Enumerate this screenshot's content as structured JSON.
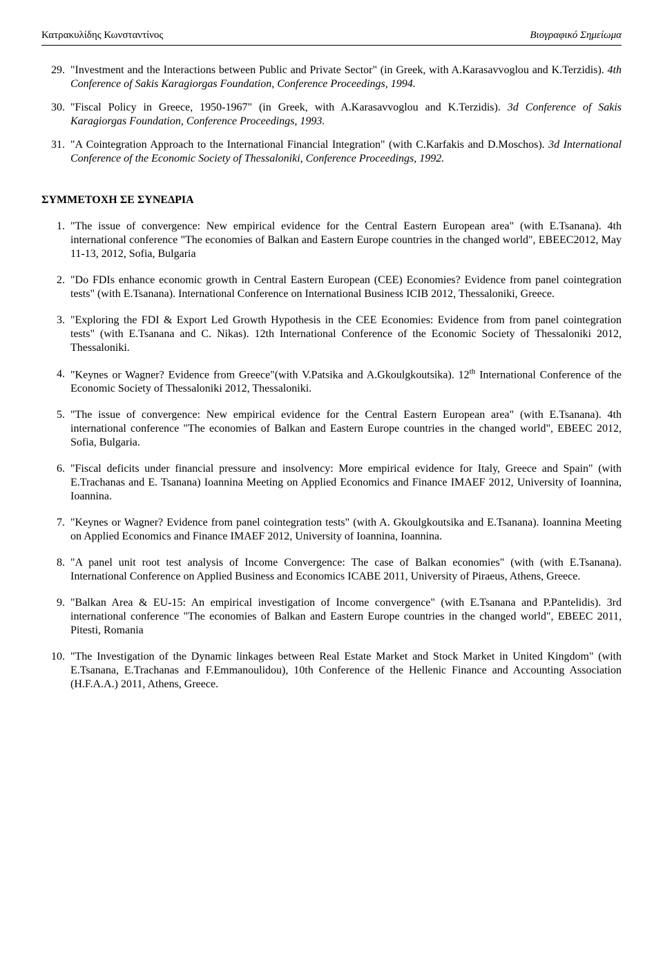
{
  "header": {
    "left": "Κατρακυλίδης Κωνσταντίνος",
    "right": "Βιογραφικό Σημείωμα"
  },
  "topItems": [
    {
      "num": "29.",
      "plain1": "\"Investment and the Interactions between Public and Private Sector\" (in Greek, with A.Karasavvoglou and K.Terzidis). ",
      "italic": "4th Conference of Sakis Karagiorgas Foundation, Conference Proceedings, 1994.",
      "plain2": ""
    },
    {
      "num": "30.",
      "plain1": "\"Fiscal Policy in Greece, 1950-1967\" (in Greek, with A.Karasavvoglou and K.Terzidis). ",
      "italic": "3d Conference of Sakis Karagiorgas Foundation, Conference Proceedings, 1993.",
      "plain2": ""
    },
    {
      "num": "31.",
      "plain1": "\"A Cointegration Approach to the International Financial Integration\" (with C.Karfakis and D.Moschos). ",
      "italic": "3d International Conference of the Economic Society of Thessaloniki, Conference Proceedings, 1992.",
      "plain2": ""
    }
  ],
  "sectionHeading": "ΣΥΜΜΕΤΟΧΗ ΣΕ ΣΥΝΕΔΡΙΑ",
  "bottomItems": [
    {
      "num": "1.",
      "text": "\"The issue of convergence: New empirical evidence for the Central Eastern European area\" (with E.Tsanana). 4th international conference \"The economies of Balkan and Eastern Europe countries in the changed world\", EBEEC2012, May 11-13, 2012, Sofia, Bulgaria"
    },
    {
      "num": "2.",
      "text": "\"Do FDIs enhance economic growth in Central Eastern European (CEE) Economies? Evidence from panel cointegration tests\" (with E.Tsanana). International Conference on International Business ICIB 2012, Thessaloniki, Greece."
    },
    {
      "num": "3.",
      "text": "\"Exploring the FDI & Export Led Growth Hypothesis in the CEE Economies: Evidence from from panel cointegration tests\" (with E.Tsanana and C. Nikas). 12th International Conference of the Economic Society of Thessaloniki 2012, Thessaloniki."
    },
    {
      "num": "4.",
      "text": "\"Keynes or Wagner? Evidence from Greece\"(with V.Patsika and A.Gkoulgkoutsika). 12",
      "sup": "th",
      "textAfter": " International Conference of the Economic Society of Thessaloniki 2012, Thessaloniki."
    },
    {
      "num": "5.",
      "text": "\"The issue of convergence: New empirical evidence for the Central Eastern European area\" (with E.Tsanana). 4th international conference \"The economies of Balkan and Eastern Europe countries in the changed world\", EBEEC 2012,  Sofia, Bulgaria."
    },
    {
      "num": "6.",
      "text": "\"Fiscal deficits under financial pressure and insolvency: More empirical evidence for Italy, Greece and Spain\" (with E.Trachanas and E. Tsanana) Ioannina Meeting on Applied Economics and Finance IMAEF 2012, University of Ioannina, Ioannina."
    },
    {
      "num": "7.",
      "text": "\"Keynes or Wagner? Evidence from panel cointegration tests\" (with A. Gkoulgkoutsika and E.Tsanana). Ioannina Meeting on Applied Economics and Finance IMAEF 2012, University of Ioannina, Ioannina."
    },
    {
      "num": "8.",
      "text": "\"A panel unit root test analysis of Income Convergence: The case of Balkan economies\" (with (with E.Tsanana). International Conference on Applied Business and Economics ICABE 2011, University of Piraeus, Athens, Greece."
    },
    {
      "num": "9.",
      "text": "\"Balkan Area & EU-15: An empirical investigation of Income convergence\" (with E.Tsanana and P.Pantelidis). 3rd international conference \"The economies of Balkan and Eastern Europe countries in the changed world\", EBEEC 2011, Pitesti, Romania"
    },
    {
      "num": "10.",
      "text": "\"The Investigation of the Dynamic linkages between Real Estate Market and Stock Market in United Kingdom\" (with E.Tsanana, E.Trachanas and F.Emmanoulidou), 10th Conference of the Hellenic Finance and Accounting Association (H.F.A.A.) 2011, Athens, Greece."
    }
  ]
}
